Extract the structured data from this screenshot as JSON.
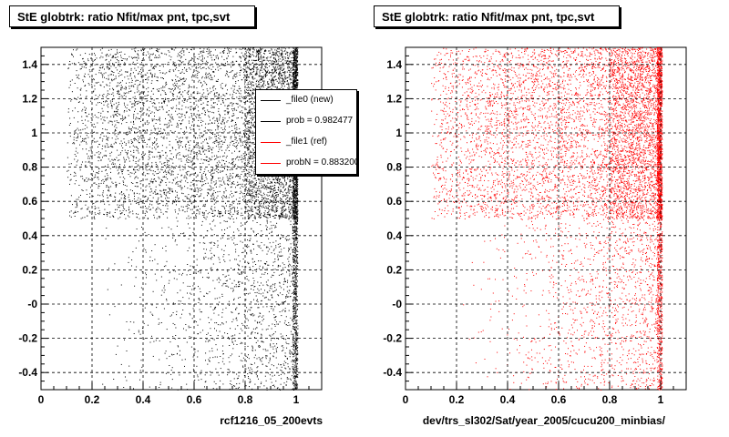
{
  "chart_data": [
    {
      "type": "scatter",
      "title": "StE globtrk: ratio Nfit/max pnt, tpc,svt",
      "xlabel": "rcf1216_05_200evts",
      "ylabel": "",
      "xlim": [
        0,
        1.1
      ],
      "ylim": [
        -0.5,
        1.5
      ],
      "x_ticks": [
        "0",
        "0.2",
        "0.4",
        "0.6",
        "0.8",
        "1"
      ],
      "y_ticks": [
        "-0.4",
        "-0.2",
        "-0",
        "0.2",
        "0.4",
        "0.6",
        "0.8",
        "1",
        "1.2",
        "1.4"
      ],
      "grid": true,
      "marker_color": "#000000",
      "legend_position": "top-right",
      "legend": [
        {
          "label": "_file0 (new)",
          "color": "#000000"
        },
        {
          "label": "prob = 0.982477",
          "color": "#000000"
        },
        {
          "label": "_file1 (ref)",
          "color": "#ff0000"
        },
        {
          "label": "probN = 0.883200",
          "color": "#ff0000"
        }
      ]
    },
    {
      "type": "scatter",
      "title": "StE globtrk: ratio Nfit/max pnt, tpc,svt",
      "xlabel": "dev/trs_sl302/Sat/year_2005/cucu200_minbias/",
      "ylabel": "",
      "xlim": [
        0,
        1.1
      ],
      "ylim": [
        -0.5,
        1.5
      ],
      "x_ticks": [
        "0",
        "0.2",
        "0.4",
        "0.6",
        "0.8",
        "1"
      ],
      "y_ticks": [
        "-0.4",
        "-0.2",
        "-0",
        "0.2",
        "0.4",
        "0.6",
        "0.8",
        "1",
        "1.2",
        "1.4"
      ],
      "grid": true,
      "marker_color": "#ff0000"
    }
  ]
}
